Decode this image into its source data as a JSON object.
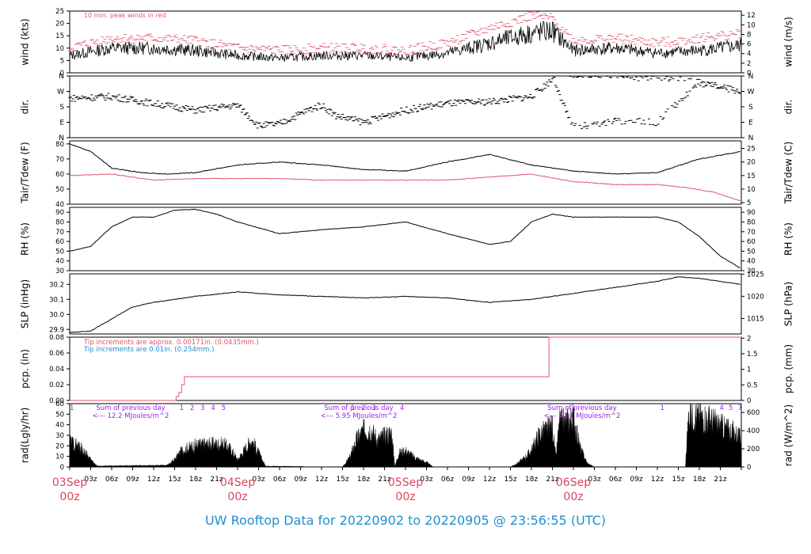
{
  "footer": {
    "title": "UW Rooftop Data for 20220902  to  20220905 @ 23:56:55  (UTC)"
  },
  "colors": {
    "black": "#000000",
    "red": "#e0566a",
    "blue": "#1f8fd1",
    "purple": "#a020f0",
    "date_red": "#d9485c"
  },
  "chart_data": [
    {
      "type": "line",
      "panel": "wind",
      "ylabel_left": "wind (kts)",
      "ylabel_right": "wind (m/s)",
      "annotation": "10 min. peak winds in red",
      "y_left_ticks": [
        0,
        5,
        10,
        15,
        20,
        25
      ],
      "y_right_ticks": [
        0,
        2,
        4,
        6,
        8,
        10,
        12
      ],
      "ylim": [
        0,
        25
      ],
      "series": [
        {
          "role": "mean",
          "color": "#000000",
          "x": [
            0,
            6,
            12,
            18,
            24,
            30,
            36,
            42,
            48,
            54,
            60,
            66,
            69,
            72,
            78,
            84,
            90,
            96
          ],
          "values": [
            7,
            10,
            10,
            9,
            7,
            6,
            7,
            7,
            6,
            8,
            12,
            16,
            17,
            9,
            10,
            8,
            9,
            11
          ]
        },
        {
          "role": "peak",
          "color": "#e0566a",
          "x": [
            0,
            6,
            12,
            18,
            24,
            30,
            36,
            42,
            48,
            54,
            60,
            66,
            69,
            72,
            78,
            84,
            90,
            96
          ],
          "values": [
            10,
            14,
            14,
            13,
            10,
            9,
            10,
            10,
            9,
            12,
            18,
            23,
            22,
            13,
            14,
            12,
            14,
            16
          ]
        }
      ]
    },
    {
      "type": "scatter",
      "panel": "dir",
      "ylabel_left": "dir.",
      "ylabel_right": "dir.",
      "y_ticks": [
        "N",
        "E",
        "S",
        "W",
        "N"
      ],
      "y_tick_values": [
        0,
        90,
        180,
        270,
        360
      ],
      "ylim": [
        0,
        360
      ],
      "series": [
        {
          "role": "direction",
          "color": "#000000",
          "x": [
            0,
            6,
            12,
            18,
            24,
            27,
            30,
            34,
            36,
            38,
            42,
            48,
            54,
            60,
            66,
            69,
            72,
            78,
            84,
            90,
            96
          ],
          "values": [
            230,
            240,
            200,
            160,
            190,
            70,
            80,
            160,
            190,
            130,
            90,
            160,
            200,
            210,
            240,
            340,
            60,
            100,
            90,
            320,
            270
          ]
        }
      ]
    },
    {
      "type": "line",
      "panel": "temperature",
      "ylabel_left": "Tair/Tdew (F)",
      "ylabel_right": "Tair/Tdew (C)",
      "y_left_ticks": [
        40,
        50,
        60,
        70,
        80
      ],
      "y_right_ticks": [
        5,
        10,
        15,
        20,
        25
      ],
      "ylim": [
        40,
        82
      ],
      "series": [
        {
          "role": "air_temperature",
          "color": "#000000",
          "x": [
            0,
            3,
            6,
            10,
            14,
            18,
            24,
            30,
            36,
            42,
            48,
            54,
            60,
            66,
            72,
            78,
            84,
            90,
            96
          ],
          "values": [
            80,
            75,
            64,
            61,
            60,
            61,
            66,
            68,
            66,
            63,
            62,
            68,
            73,
            66,
            62,
            60,
            61,
            70,
            75
          ]
        },
        {
          "role": "dew_point",
          "color": "#e0566a",
          "x": [
            0,
            6,
            12,
            18,
            24,
            30,
            36,
            42,
            48,
            54,
            60,
            66,
            72,
            78,
            84,
            88,
            92,
            96
          ],
          "values": [
            59,
            60,
            56,
            57,
            57,
            57,
            56,
            56,
            56,
            56,
            58,
            60,
            55,
            53,
            53,
            51,
            48,
            42
          ]
        }
      ]
    },
    {
      "type": "line",
      "panel": "rh",
      "ylabel_left": "RH (%)",
      "ylabel_right": "RH (%)",
      "y_ticks": [
        30,
        40,
        50,
        60,
        70,
        80,
        90
      ],
      "ylim": [
        30,
        95
      ],
      "series": [
        {
          "role": "relative_humidity",
          "color": "#000000",
          "x": [
            0,
            3,
            6,
            9,
            12,
            15,
            18,
            21,
            24,
            30,
            36,
            42,
            48,
            54,
            60,
            63,
            66,
            69,
            72,
            78,
            84,
            87,
            90,
            93,
            96
          ],
          "values": [
            50,
            55,
            75,
            85,
            85,
            92,
            93,
            88,
            80,
            68,
            72,
            75,
            80,
            68,
            57,
            60,
            80,
            88,
            85,
            85,
            85,
            80,
            65,
            45,
            32
          ]
        }
      ]
    },
    {
      "type": "line",
      "panel": "slp",
      "ylabel_left": "SLP (inHg)",
      "ylabel_right": "SLP (hPa)",
      "y_left_ticks": [
        29.9,
        30.0,
        30.1,
        30.2
      ],
      "y_right_ticks": [
        1015,
        1020,
        1025
      ],
      "ylim": [
        29.87,
        30.27
      ],
      "series": [
        {
          "role": "sea_level_pressure",
          "color": "#000000",
          "x": [
            0,
            3,
            6,
            9,
            12,
            18,
            24,
            30,
            36,
            42,
            48,
            54,
            60,
            66,
            72,
            78,
            84,
            87,
            90,
            96
          ],
          "values": [
            29.88,
            29.89,
            29.97,
            30.05,
            30.08,
            30.12,
            30.15,
            30.13,
            30.12,
            30.11,
            30.12,
            30.11,
            30.08,
            30.1,
            30.14,
            30.18,
            30.22,
            30.25,
            30.24,
            30.2
          ]
        }
      ]
    },
    {
      "type": "line",
      "panel": "precip",
      "ylabel_left": "pcp. (in)",
      "ylabel_right": "pcp. (mm)",
      "annotations": [
        {
          "text": "Tip increments are approx. 0.00171in. (0.0435mm.)",
          "color": "#e0566a"
        },
        {
          "text": "Tip increments are 0.01in. (0.254mm.)",
          "color": "#1f8fd1"
        }
      ],
      "y_left_ticks": [
        0.0,
        0.02,
        0.04,
        0.06,
        0.08
      ],
      "y_right_ticks": [
        0,
        0.5,
        1,
        1.5,
        2
      ],
      "ylim": [
        0,
        0.08
      ],
      "series": [
        {
          "role": "precip_step",
          "color": "#e0566a",
          "x": [
            0,
            15.2,
            15.2,
            15.6,
            15.6,
            16.0,
            16.0,
            16.4,
            16.4,
            68.5,
            68.5,
            96
          ],
          "values": [
            0,
            0,
            0.005,
            0.005,
            0.01,
            0.01,
            0.02,
            0.02,
            0.03,
            0.03,
            0.08,
            0.08
          ]
        }
      ]
    },
    {
      "type": "area",
      "panel": "radiation",
      "ylabel_left": "rad(Lgly/hr)",
      "ylabel_right": "rad (W/m^2)",
      "y_left_ticks": [
        0,
        10,
        20,
        30,
        40,
        50,
        60
      ],
      "y_right_ticks": [
        0,
        200,
        400,
        600
      ],
      "ylim": [
        0,
        60
      ],
      "day_sums": [
        {
          "text": "Sum of previous day",
          "value_text": "<--- 12.2 MJoules/m^2"
        },
        {
          "text": "Sum of previous day",
          "value_text": "<--- 5.95 MJoules/m^2"
        },
        {
          "text": "Sum of previous day",
          "value_text": "<--- 4.91 MJoules/m^2"
        }
      ],
      "hour_marks": [
        {
          "x": 0.3,
          "label": "1"
        },
        {
          "x": 16,
          "label": "1"
        },
        {
          "x": 17.5,
          "label": "2"
        },
        {
          "x": 19,
          "label": "3"
        },
        {
          "x": 20.5,
          "label": "4"
        },
        {
          "x": 22,
          "label": "5"
        },
        {
          "x": 40.5,
          "label": "1"
        },
        {
          "x": 42,
          "label": "2"
        },
        {
          "x": 43.5,
          "label": "3"
        },
        {
          "x": 47.5,
          "label": "4"
        },
        {
          "x": 84.7,
          "label": "1"
        },
        {
          "x": 93.2,
          "label": "4"
        },
        {
          "x": 94.5,
          "label": "5"
        },
        {
          "x": 95.8,
          "label": "7"
        }
      ],
      "series": [
        {
          "role": "solar_radiation",
          "color": "#000000",
          "x": [
            0,
            1,
            2,
            3,
            4,
            14,
            15,
            16,
            18,
            20,
            22,
            23,
            24,
            26,
            28,
            39,
            40,
            41,
            42,
            43,
            44,
            46,
            46.5,
            47,
            48,
            49,
            50,
            51,
            52,
            63,
            64,
            65,
            66,
            67,
            68,
            69,
            69.5,
            70,
            71,
            72,
            73,
            74,
            75,
            76,
            77,
            88,
            88.5,
            89,
            90,
            91,
            92,
            93,
            94,
            95,
            96
          ],
          "values": [
            28,
            24,
            18,
            8,
            1,
            2,
            8,
            18,
            24,
            25,
            25,
            20,
            8,
            30,
            1,
            0,
            10,
            30,
            40,
            42,
            30,
            38,
            0,
            15,
            18,
            12,
            8,
            5,
            0,
            0,
            4,
            10,
            18,
            35,
            40,
            45,
            10,
            48,
            50,
            55,
            20,
            4,
            0,
            0,
            0,
            0,
            60,
            58,
            56,
            54,
            50,
            45,
            42,
            38,
            30
          ]
        }
      ]
    }
  ],
  "time_axis": {
    "span_hours": 96,
    "hour_labels": [
      "03z",
      "06z",
      "09z",
      "12z",
      "15z",
      "18z",
      "21z"
    ],
    "day_labels": [
      {
        "date": "03Sep",
        "hour": "00z"
      },
      {
        "date": "04Sep",
        "hour": "00z"
      },
      {
        "date": "05Sep",
        "hour": "00z"
      },
      {
        "date": "06Sep",
        "hour": "00z"
      }
    ]
  }
}
